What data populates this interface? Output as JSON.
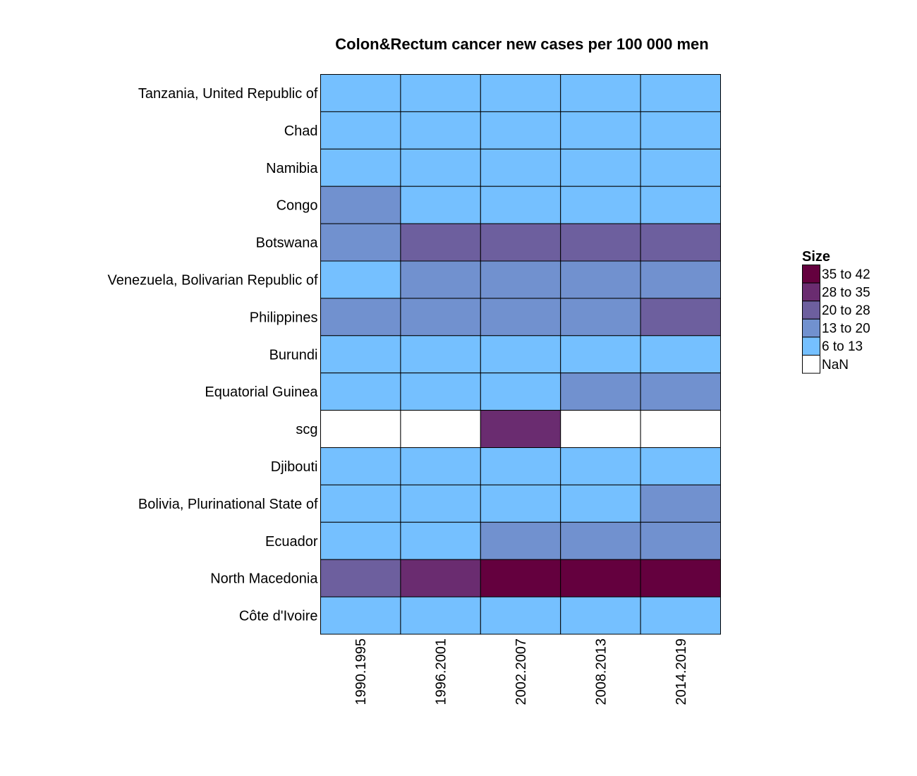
{
  "chart_data": {
    "type": "heatmap",
    "title": "Colon&Rectum cancer new cases per 100 000 men",
    "columns": [
      "1990.1995",
      "1996.2001",
      "2002.2007",
      "2008.2013",
      "2014.2019"
    ],
    "rows": [
      "Tanzania, United Republic of",
      "Chad",
      "Namibia",
      "Congo",
      "Botswana",
      "Venezuela, Bolivarian Republic of",
      "Philippines",
      "Burundi",
      "Equatorial Guinea",
      "scg",
      "Djibouti",
      "Bolivia, Plurinational State of",
      "Ecuador",
      "North Macedonia",
      "Côte d'Ivoire"
    ],
    "cells": [
      [
        "6 to 13",
        "6 to 13",
        "6 to 13",
        "6 to 13",
        "6 to 13"
      ],
      [
        "6 to 13",
        "6 to 13",
        "6 to 13",
        "6 to 13",
        "6 to 13"
      ],
      [
        "6 to 13",
        "6 to 13",
        "6 to 13",
        "6 to 13",
        "6 to 13"
      ],
      [
        "13 to 20",
        "6 to 13",
        "6 to 13",
        "6 to 13",
        "6 to 13"
      ],
      [
        "13 to 20",
        "20 to 28",
        "20 to 28",
        "20 to 28",
        "20 to 28"
      ],
      [
        "6 to 13",
        "13 to 20",
        "13 to 20",
        "13 to 20",
        "13 to 20"
      ],
      [
        "13 to 20",
        "13 to 20",
        "13 to 20",
        "13 to 20",
        "20 to 28"
      ],
      [
        "6 to 13",
        "6 to 13",
        "6 to 13",
        "6 to 13",
        "6 to 13"
      ],
      [
        "6 to 13",
        "6 to 13",
        "6 to 13",
        "13 to 20",
        "13 to 20"
      ],
      [
        "NaN",
        "NaN",
        "28 to 35",
        "NaN",
        "NaN"
      ],
      [
        "6 to 13",
        "6 to 13",
        "6 to 13",
        "6 to 13",
        "6 to 13"
      ],
      [
        "6 to 13",
        "6 to 13",
        "6 to 13",
        "6 to 13",
        "13 to 20"
      ],
      [
        "6 to 13",
        "6 to 13",
        "13 to 20",
        "13 to 20",
        "13 to 20"
      ],
      [
        "20 to 28",
        "28 to 35",
        "35 to 42",
        "35 to 42",
        "35 to 42"
      ],
      [
        "6 to 13",
        "6 to 13",
        "6 to 13",
        "6 to 13",
        "6 to 13"
      ]
    ],
    "legend": {
      "title": "Size",
      "placement": "right",
      "items": [
        {
          "label": "35 to 42",
          "color": "#64003e"
        },
        {
          "label": "28 to 35",
          "color": "#6a2c70"
        },
        {
          "label": "20 to 28",
          "color": "#6d5f9e"
        },
        {
          "label": "13 to 20",
          "color": "#7191cf"
        },
        {
          "label": "6 to 13",
          "color": "#75c0ff"
        },
        {
          "label": "NaN",
          "color": "#ffffff"
        }
      ]
    },
    "grid": true
  }
}
